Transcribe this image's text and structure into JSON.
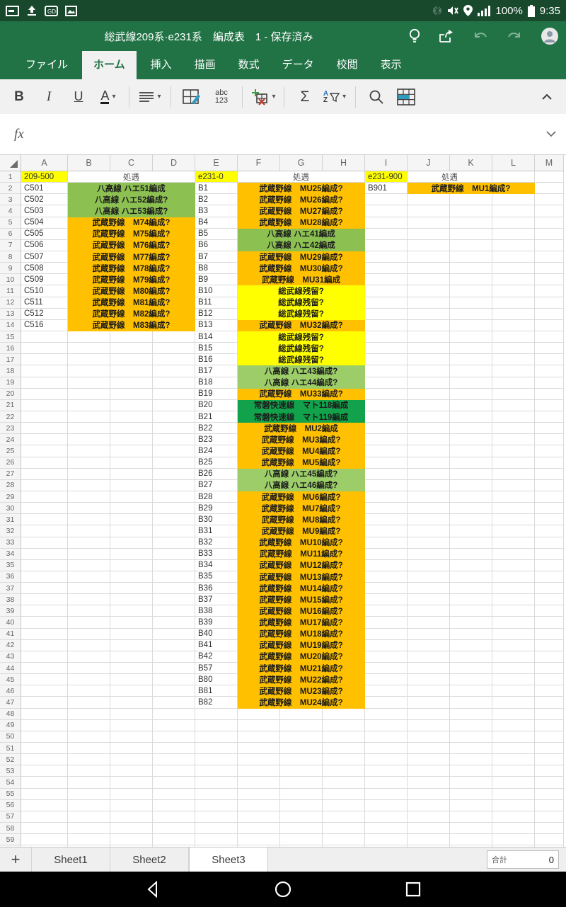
{
  "status_bar": {
    "time": "9:35",
    "battery_percent": "100%",
    "left_icons": [
      "keyboard-icon",
      "upload-icon",
      "sms-icon",
      "photo-icon"
    ],
    "right_icons": [
      "bluetooth-icon",
      "mute-icon",
      "location-icon",
      "signal-icon",
      "battery-icon"
    ]
  },
  "title_bar": {
    "title": "総武線209系·e231系　編成表　1 - 保存済み",
    "icons": [
      "tips-icon",
      "share-icon",
      "undo-icon",
      "redo-icon",
      "account-icon"
    ]
  },
  "ribbon": {
    "tabs": [
      {
        "label": "ファイル",
        "active": false
      },
      {
        "label": "ホーム",
        "active": true
      },
      {
        "label": "挿入",
        "active": false
      },
      {
        "label": "描画",
        "active": false
      },
      {
        "label": "数式",
        "active": false
      },
      {
        "label": "データ",
        "active": false
      },
      {
        "label": "校閲",
        "active": false
      },
      {
        "label": "表示",
        "active": false
      }
    ]
  },
  "toolbar": {
    "bold": "B",
    "italic": "I",
    "underline": "U",
    "font_color": "A",
    "number_format_top": "abc",
    "number_format_bottom": "123",
    "autosum": "Σ",
    "sort_a": "A",
    "sort_z": "Z"
  },
  "formula_bar": {
    "fx_label": "fx",
    "value": ""
  },
  "grid": {
    "column_letters": [
      "A",
      "B",
      "C",
      "D",
      "E",
      "F",
      "G",
      "H",
      "I",
      "J",
      "K",
      "L",
      "M"
    ],
    "colors": {
      "o": "#ffc000",
      "y": "#ffff00",
      "g": "#8cc152",
      "lg": "#9ccd69",
      "dg": "#13a24c"
    },
    "row1": {
      "a": "209-500",
      "bcd": "処遇",
      "e": "e231-0",
      "fgh": "処遇",
      "i": "e231-900",
      "jk": "処遇"
    },
    "rows": [
      {
        "n": 2,
        "a": "C501",
        "b": {
          "t": "八高線 ハエ51編成",
          "c": "g"
        },
        "e": "B1",
        "f": {
          "t": "武蔵野線　MU25編成?",
          "c": "o"
        },
        "i": "B901",
        "j": {
          "t": "武蔵野線　MU1編成?",
          "c": "o"
        }
      },
      {
        "n": 3,
        "a": "C502",
        "b": {
          "t": "八高線 ハエ52編成?",
          "c": "g"
        },
        "e": "B2",
        "f": {
          "t": "武蔵野線　MU26編成?",
          "c": "o"
        }
      },
      {
        "n": 4,
        "a": "C503",
        "b": {
          "t": "八高線 ハエ53編成?",
          "c": "g"
        },
        "e": "B3",
        "f": {
          "t": "武蔵野線　MU27編成?",
          "c": "o"
        }
      },
      {
        "n": 5,
        "a": "C504",
        "b": {
          "t": "武蔵野線　M74編成?",
          "c": "o"
        },
        "e": "B4",
        "f": {
          "t": "武蔵野線　MU28編成?",
          "c": "o"
        }
      },
      {
        "n": 6,
        "a": "C505",
        "b": {
          "t": "武蔵野線　M75編成?",
          "c": "o"
        },
        "e": "B5",
        "f": {
          "t": "八高線 ハエ41編成",
          "c": "g"
        }
      },
      {
        "n": 7,
        "a": "C506",
        "b": {
          "t": "武蔵野線　M76編成?",
          "c": "o"
        },
        "e": "B6",
        "f": {
          "t": "八高線 ハエ42編成",
          "c": "g"
        }
      },
      {
        "n": 8,
        "a": "C507",
        "b": {
          "t": "武蔵野線　M77編成?",
          "c": "o"
        },
        "e": "B7",
        "f": {
          "t": "武蔵野線　MU29編成?",
          "c": "o"
        }
      },
      {
        "n": 9,
        "a": "C508",
        "b": {
          "t": "武蔵野線　M78編成?",
          "c": "o"
        },
        "e": "B8",
        "f": {
          "t": "武蔵野線　MU30編成?",
          "c": "o"
        }
      },
      {
        "n": 10,
        "a": "C509",
        "b": {
          "t": "武蔵野線　M79編成?",
          "c": "o"
        },
        "e": "B9",
        "f": {
          "t": "武蔵野線　MU31編成",
          "c": "o"
        }
      },
      {
        "n": 11,
        "a": "C510",
        "b": {
          "t": "武蔵野線　M80編成?",
          "c": "o"
        },
        "e": "B10",
        "f": {
          "t": "総武線残留?",
          "c": "y"
        }
      },
      {
        "n": 12,
        "a": "C511",
        "b": {
          "t": "武蔵野線　M81編成?",
          "c": "o"
        },
        "e": "B11",
        "f": {
          "t": "総武線残留?",
          "c": "y"
        }
      },
      {
        "n": 13,
        "a": "C512",
        "b": {
          "t": "武蔵野線　M82編成?",
          "c": "o"
        },
        "e": "B12",
        "f": {
          "t": "総武線残留?",
          "c": "y"
        }
      },
      {
        "n": 14,
        "a": "C516",
        "b": {
          "t": "武蔵野線　M83編成?",
          "c": "o"
        },
        "e": "B13",
        "f": {
          "t": "武蔵野線　MU32編成?",
          "c": "o"
        }
      },
      {
        "n": 15,
        "e": "B14",
        "f": {
          "t": "総武線残留?",
          "c": "y"
        }
      },
      {
        "n": 16,
        "e": "B15",
        "f": {
          "t": "総武線残留?",
          "c": "y"
        }
      },
      {
        "n": 17,
        "e": "B16",
        "f": {
          "t": "総武線残留?",
          "c": "y"
        }
      },
      {
        "n": 18,
        "e": "B17",
        "f": {
          "t": "八高線 ハエ43編成?",
          "c": "lg"
        }
      },
      {
        "n": 19,
        "e": "B18",
        "f": {
          "t": "八高線 ハエ44編成?",
          "c": "lg"
        }
      },
      {
        "n": 20,
        "e": "B19",
        "f": {
          "t": "武蔵野線　MU33編成?",
          "c": "o"
        }
      },
      {
        "n": 21,
        "e": "B20",
        "f": {
          "t": "常磐快速線　マト118編成",
          "c": "dg"
        }
      },
      {
        "n": 22,
        "e": "B21",
        "f": {
          "t": "常磐快速線　マト119編成",
          "c": "dg"
        }
      },
      {
        "n": 23,
        "e": "B22",
        "f": {
          "t": "武蔵野線　MU2編成",
          "c": "o"
        }
      },
      {
        "n": 24,
        "e": "B23",
        "f": {
          "t": "武蔵野線　MU3編成?",
          "c": "o"
        }
      },
      {
        "n": 25,
        "e": "B24",
        "f": {
          "t": "武蔵野線　MU4編成?",
          "c": "o"
        }
      },
      {
        "n": 26,
        "e": "B25",
        "f": {
          "t": "武蔵野線　MU5編成?",
          "c": "o"
        }
      },
      {
        "n": 27,
        "e": "B26",
        "f": {
          "t": "八高線 ハエ45編成?",
          "c": "lg"
        }
      },
      {
        "n": 28,
        "e": "B27",
        "f": {
          "t": "八高線 ハエ46編成?",
          "c": "lg"
        }
      },
      {
        "n": 29,
        "e": "B28",
        "f": {
          "t": "武蔵野線　MU6編成?",
          "c": "o"
        }
      },
      {
        "n": 30,
        "e": "B29",
        "f": {
          "t": "武蔵野線　MU7編成?",
          "c": "o"
        }
      },
      {
        "n": 31,
        "e": "B30",
        "f": {
          "t": "武蔵野線　MU8編成?",
          "c": "o"
        }
      },
      {
        "n": 32,
        "e": "B31",
        "f": {
          "t": "武蔵野線　MU9編成?",
          "c": "o"
        }
      },
      {
        "n": 33,
        "e": "B32",
        "f": {
          "t": "武蔵野線　MU10編成?",
          "c": "o"
        }
      },
      {
        "n": 34,
        "e": "B33",
        "f": {
          "t": "武蔵野線　MU11編成?",
          "c": "o"
        }
      },
      {
        "n": 35,
        "e": "B34",
        "f": {
          "t": "武蔵野線　MU12編成?",
          "c": "o"
        }
      },
      {
        "n": 36,
        "e": "B35",
        "f": {
          "t": "武蔵野線　MU13編成?",
          "c": "o"
        }
      },
      {
        "n": 37,
        "e": "B36",
        "f": {
          "t": "武蔵野線　MU14編成?",
          "c": "o"
        }
      },
      {
        "n": 38,
        "e": "B37",
        "f": {
          "t": "武蔵野線　MU15編成?",
          "c": "o"
        }
      },
      {
        "n": 39,
        "e": "B38",
        "f": {
          "t": "武蔵野線　MU16編成?",
          "c": "o"
        }
      },
      {
        "n": 40,
        "e": "B39",
        "f": {
          "t": "武蔵野線　MU17編成?",
          "c": "o"
        }
      },
      {
        "n": 41,
        "e": "B40",
        "f": {
          "t": "武蔵野線　MU18編成?",
          "c": "o"
        }
      },
      {
        "n": 42,
        "e": "B41",
        "f": {
          "t": "武蔵野線　MU19編成?",
          "c": "o"
        }
      },
      {
        "n": 43,
        "e": "B42",
        "f": {
          "t": "武蔵野線　MU20編成?",
          "c": "o"
        }
      },
      {
        "n": 44,
        "e": "B57",
        "f": {
          "t": "武蔵野線　MU21編成?",
          "c": "o"
        }
      },
      {
        "n": 45,
        "e": "B80",
        "f": {
          "t": "武蔵野線　MU22編成?",
          "c": "o"
        }
      },
      {
        "n": 46,
        "e": "B81",
        "f": {
          "t": "武蔵野線　MU23編成?",
          "c": "o"
        }
      },
      {
        "n": 47,
        "e": "B82",
        "f": {
          "t": "武蔵野線　MU24編成?",
          "c": "o"
        }
      }
    ],
    "last_row_number": 60
  },
  "sheet_bar": {
    "add_label": "+",
    "tabs": [
      {
        "label": "Sheet1",
        "active": false
      },
      {
        "label": "Sheet2",
        "active": false
      },
      {
        "label": "Sheet3",
        "active": true
      }
    ],
    "sum_label": "合計",
    "sum_value": "0"
  },
  "nav_bar": {
    "icons": [
      "back-icon",
      "home-icon",
      "recents-icon"
    ]
  },
  "theme": {
    "excel_green": "#217346",
    "statusbar_green": "#18492d",
    "toolbar_gray": "#f1f1f1"
  }
}
